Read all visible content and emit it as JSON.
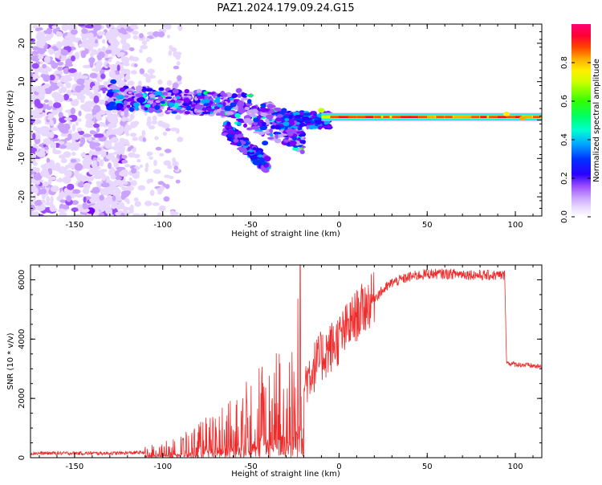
{
  "title": "PAZ1.2024.179.09.24.G15",
  "colors": {
    "snr_line": "#ee2a2a",
    "axes": "#000000",
    "colormap": [
      "#ffffff",
      "#e8d8ff",
      "#c9a3ff",
      "#9b4dff",
      "#7a00ff",
      "#2a00ff",
      "#0033ff",
      "#00aaff",
      "#00ffd0",
      "#00ff66",
      "#33ff00",
      "#ccff00",
      "#ffee00",
      "#ffaa00",
      "#ff4400",
      "#ff0033",
      "#ff0077"
    ]
  },
  "chart_data": [
    {
      "type": "heatmap",
      "title": "PAZ1.2024.179.09.24.G15",
      "xlabel": "Height of straight line (km)",
      "ylabel": "Frequency (Hz)",
      "xlim": [
        -175,
        115
      ],
      "ylim": [
        -25,
        25
      ],
      "xticks": [
        -150,
        -100,
        -50,
        0,
        50,
        100
      ],
      "yticks": [
        -20,
        -10,
        0,
        10,
        20
      ],
      "colorbar": {
        "label": "Normalized spectral amplitude",
        "range": [
          0.0,
          1.0
        ],
        "ticks": [
          "0.0",
          "0.2",
          "0.4",
          "0.6",
          "0.8"
        ]
      },
      "description_points": [
        {
          "x": -128,
          "y": 10,
          "z": 0.55
        },
        {
          "x": -115,
          "y": 4,
          "z": 0.6
        },
        {
          "x": -95,
          "y": 4,
          "z": 0.65
        },
        {
          "x": -75,
          "y": 5,
          "z": 0.6
        },
        {
          "x": -60,
          "y": 4,
          "z": 0.55
        },
        {
          "x": -47,
          "y": 0,
          "z": 0.5
        },
        {
          "x": -42,
          "y": -6,
          "z": 0.55
        },
        {
          "x": -30,
          "y": -1,
          "z": 0.6
        },
        {
          "x": -10,
          "y": 2.5,
          "z": 0.7
        },
        {
          "x": 0,
          "y": 0.8,
          "z": 0.9
        },
        {
          "x": 40,
          "y": 0.8,
          "z": 0.92
        },
        {
          "x": 80,
          "y": 0.8,
          "z": 0.9
        },
        {
          "x": 95,
          "y": 1.5,
          "z": 0.85
        },
        {
          "x": 105,
          "y": 0.5,
          "z": 0.8
        }
      ]
    },
    {
      "type": "line",
      "xlabel": "Height of straight line (km)",
      "ylabel": "SNR (10 * v/v)",
      "xlim": [
        -175,
        115
      ],
      "ylim": [
        0,
        6500
      ],
      "xticks": [
        -150,
        -100,
        -50,
        0,
        50,
        100
      ],
      "yticks": [
        0,
        2000,
        4000,
        6000
      ],
      "series": [
        {
          "x": [
            -175,
            -150,
            -125,
            -110,
            -100,
            -90,
            -80,
            -70,
            -60,
            -50,
            -40,
            -30,
            -25,
            -22,
            -20,
            -15,
            -10,
            -5,
            0,
            10,
            20,
            30,
            40,
            50,
            60,
            70,
            80,
            90,
            94,
            95,
            100,
            110,
            115
          ],
          "y": [
            150,
            150,
            150,
            180,
            250,
            350,
            550,
            800,
            1100,
            1350,
            1600,
            1900,
            2100,
            3000,
            2500,
            3000,
            3400,
            3700,
            4000,
            4800,
            5400,
            5900,
            6100,
            6200,
            6200,
            6200,
            6150,
            6150,
            6150,
            3200,
            3150,
            3100,
            3050
          ]
        }
      ],
      "annotations": [
        {
          "x": -22,
          "y": 6500,
          "text": ""
        }
      ]
    }
  ]
}
